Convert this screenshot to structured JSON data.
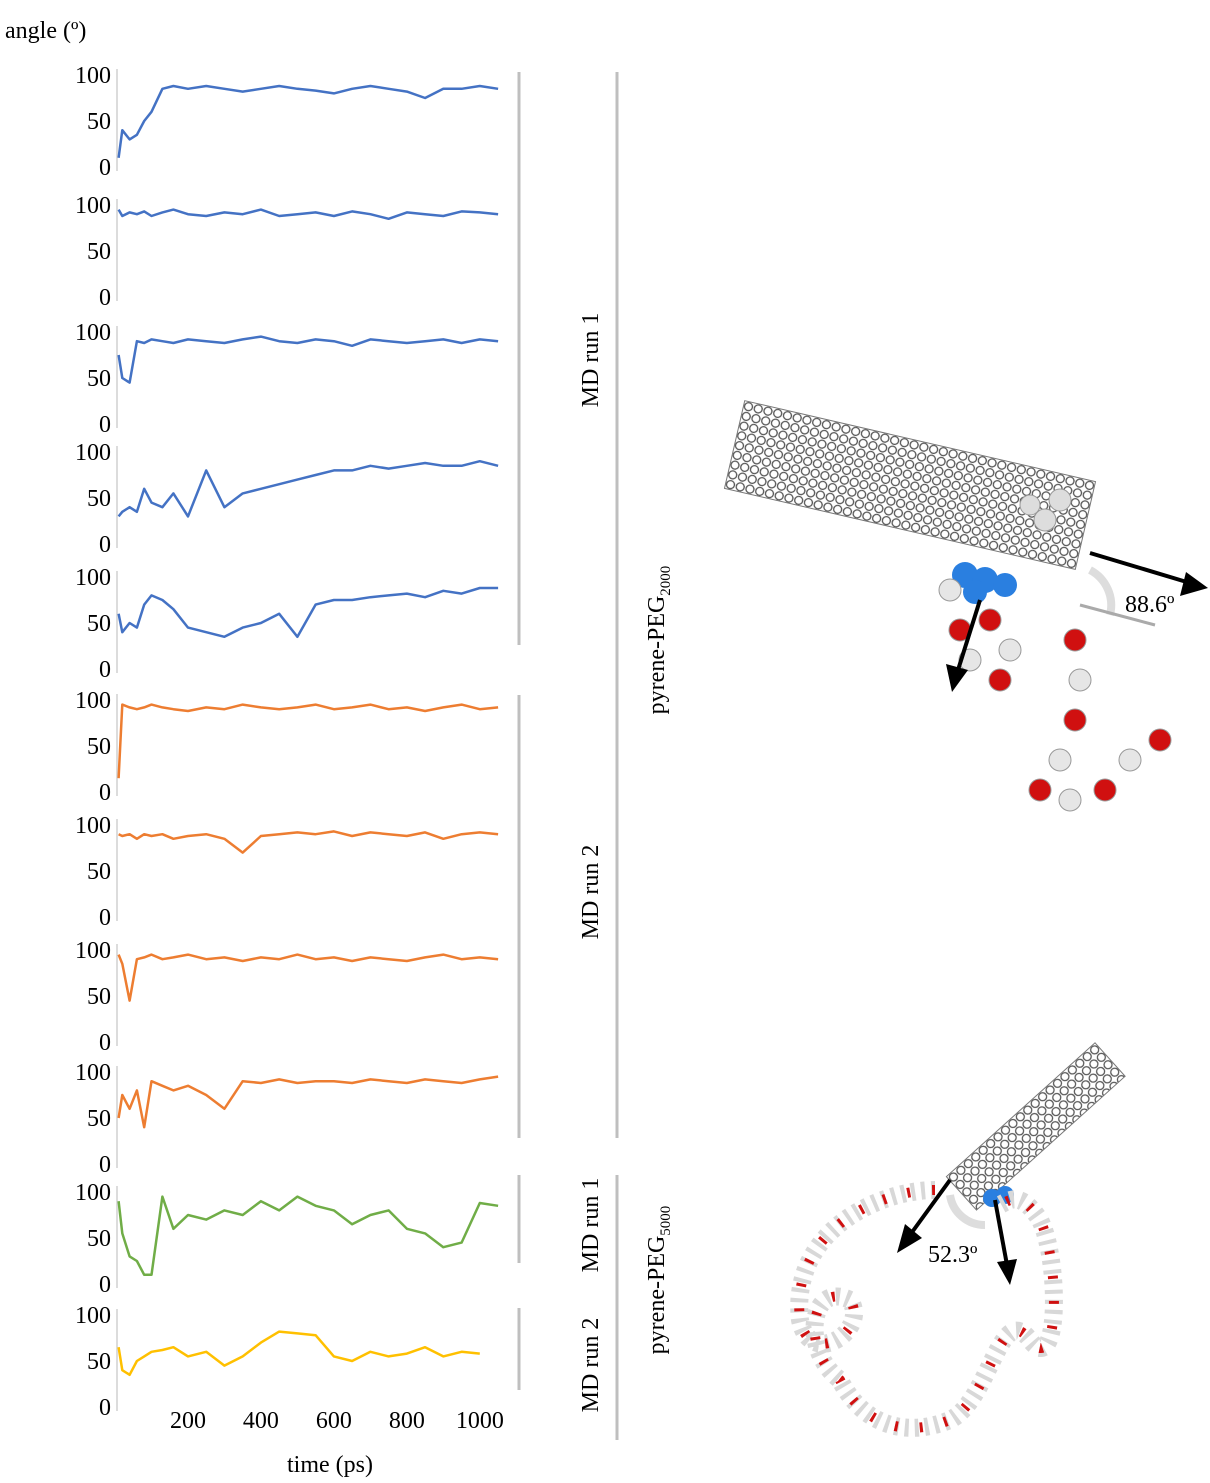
{
  "figure": {
    "groups": {
      "blue": "MD run 1",
      "orange": "MD run 2",
      "green": "MD run 1",
      "yellow": "MD run 2"
    },
    "systems": [
      {
        "name": "pyrene-PEG",
        "sub": "2000"
      },
      {
        "name": "pyrene-PEG",
        "sub": "5000"
      }
    ],
    "annotations": [
      "88.6º",
      "52.3º"
    ]
  },
  "chart_data": [
    {
      "type": "line",
      "y_label": "angle (º)",
      "xlim": [
        0,
        1080
      ],
      "ylim": [
        0,
        100
      ],
      "yticks": [
        0,
        50,
        100
      ],
      "x": [
        10,
        20,
        40,
        60,
        80,
        100,
        130,
        160,
        200,
        250,
        300,
        350,
        400,
        450,
        500,
        550,
        600,
        650,
        700,
        750,
        800,
        850,
        900,
        950,
        1000,
        1050
      ],
      "series": [
        {
          "color": "#4472c4",
          "values": [
            10,
            40,
            30,
            35,
            50,
            60,
            85,
            88,
            85,
            88,
            85,
            82,
            85,
            88,
            85,
            83,
            80,
            85,
            88,
            85,
            82,
            75,
            85,
            85,
            88,
            85
          ]
        }
      ]
    },
    {
      "type": "line",
      "xlim": [
        0,
        1080
      ],
      "ylim": [
        0,
        100
      ],
      "yticks": [
        0,
        50,
        100
      ],
      "x": [
        10,
        20,
        40,
        60,
        80,
        100,
        130,
        160,
        200,
        250,
        300,
        350,
        400,
        450,
        500,
        550,
        600,
        650,
        700,
        750,
        800,
        850,
        900,
        950,
        1000,
        1050
      ],
      "series": [
        {
          "color": "#4472c4",
          "values": [
            95,
            88,
            92,
            90,
            93,
            88,
            92,
            95,
            90,
            88,
            92,
            90,
            95,
            88,
            90,
            92,
            88,
            93,
            90,
            85,
            92,
            90,
            88,
            93,
            92,
            90
          ]
        }
      ]
    },
    {
      "type": "line",
      "xlim": [
        0,
        1080
      ],
      "ylim": [
        0,
        100
      ],
      "yticks": [
        0,
        50,
        100
      ],
      "x": [
        10,
        20,
        40,
        60,
        80,
        100,
        130,
        160,
        200,
        250,
        300,
        350,
        400,
        450,
        500,
        550,
        600,
        650,
        700,
        750,
        800,
        850,
        900,
        950,
        1000,
        1050
      ],
      "series": [
        {
          "color": "#4472c4",
          "values": [
            75,
            50,
            45,
            90,
            88,
            92,
            90,
            88,
            92,
            90,
            88,
            92,
            95,
            90,
            88,
            92,
            90,
            85,
            92,
            90,
            88,
            90,
            92,
            88,
            92,
            90
          ]
        }
      ]
    },
    {
      "type": "line",
      "xlim": [
        0,
        1080
      ],
      "ylim": [
        0,
        100
      ],
      "yticks": [
        0,
        50,
        100
      ],
      "x": [
        10,
        20,
        40,
        60,
        80,
        100,
        130,
        160,
        200,
        250,
        300,
        350,
        400,
        450,
        500,
        550,
        600,
        650,
        700,
        750,
        800,
        850,
        900,
        950,
        1000,
        1050
      ],
      "series": [
        {
          "color": "#4472c4",
          "values": [
            30,
            35,
            40,
            35,
            60,
            45,
            40,
            55,
            30,
            80,
            40,
            55,
            60,
            65,
            70,
            75,
            80,
            80,
            85,
            82,
            85,
            88,
            85,
            85,
            90,
            85
          ]
        }
      ]
    },
    {
      "type": "line",
      "xlim": [
        0,
        1080
      ],
      "ylim": [
        0,
        100
      ],
      "yticks": [
        0,
        50,
        100
      ],
      "x": [
        10,
        20,
        40,
        60,
        80,
        100,
        130,
        160,
        200,
        250,
        300,
        350,
        400,
        450,
        500,
        550,
        600,
        650,
        700,
        750,
        800,
        850,
        900,
        950,
        1000,
        1050
      ],
      "series": [
        {
          "color": "#4472c4",
          "values": [
            60,
            40,
            50,
            45,
            70,
            80,
            75,
            65,
            45,
            40,
            35,
            45,
            50,
            60,
            35,
            70,
            75,
            75,
            78,
            80,
            82,
            78,
            85,
            82,
            88,
            88
          ]
        }
      ]
    },
    {
      "type": "line",
      "xlim": [
        0,
        1080
      ],
      "ylim": [
        0,
        100
      ],
      "yticks": [
        0,
        50,
        100
      ],
      "x": [
        10,
        20,
        40,
        60,
        80,
        100,
        130,
        160,
        200,
        250,
        300,
        350,
        400,
        450,
        500,
        550,
        600,
        650,
        700,
        750,
        800,
        850,
        900,
        950,
        1000,
        1050
      ],
      "series": [
        {
          "color": "#ed7d31",
          "values": [
            15,
            95,
            92,
            90,
            92,
            95,
            92,
            90,
            88,
            92,
            90,
            95,
            92,
            90,
            92,
            95,
            90,
            92,
            95,
            90,
            92,
            88,
            92,
            95,
            90,
            92
          ]
        }
      ]
    },
    {
      "type": "line",
      "xlim": [
        0,
        1080
      ],
      "ylim": [
        0,
        100
      ],
      "yticks": [
        0,
        50,
        100
      ],
      "x": [
        10,
        20,
        40,
        60,
        80,
        100,
        130,
        160,
        200,
        250,
        300,
        350,
        400,
        450,
        500,
        550,
        600,
        650,
        700,
        750,
        800,
        850,
        900,
        950,
        1000,
        1050
      ],
      "series": [
        {
          "color": "#ed7d31",
          "values": [
            90,
            88,
            90,
            85,
            90,
            88,
            90,
            85,
            88,
            90,
            85,
            70,
            88,
            90,
            92,
            90,
            93,
            88,
            92,
            90,
            88,
            92,
            85,
            90,
            92,
            90
          ]
        }
      ]
    },
    {
      "type": "line",
      "xlim": [
        0,
        1080
      ],
      "ylim": [
        0,
        100
      ],
      "yticks": [
        0,
        50,
        100
      ],
      "x": [
        10,
        20,
        40,
        60,
        80,
        100,
        130,
        160,
        200,
        250,
        300,
        350,
        400,
        450,
        500,
        550,
        600,
        650,
        700,
        750,
        800,
        850,
        900,
        950,
        1000,
        1050
      ],
      "series": [
        {
          "color": "#ed7d31",
          "values": [
            95,
            85,
            45,
            90,
            92,
            95,
            90,
            92,
            95,
            90,
            92,
            88,
            92,
            90,
            95,
            90,
            92,
            88,
            92,
            90,
            88,
            92,
            95,
            90,
            92,
            90
          ]
        }
      ]
    },
    {
      "type": "line",
      "xlim": [
        0,
        1080
      ],
      "ylim": [
        0,
        100
      ],
      "yticks": [
        0,
        50,
        100
      ],
      "x": [
        10,
        20,
        40,
        60,
        80,
        100,
        130,
        160,
        200,
        250,
        300,
        350,
        400,
        450,
        500,
        550,
        600,
        650,
        700,
        750,
        800,
        850,
        900,
        950,
        1000,
        1050
      ],
      "series": [
        {
          "color": "#ed7d31",
          "values": [
            50,
            75,
            60,
            80,
            40,
            90,
            85,
            80,
            85,
            75,
            60,
            90,
            88,
            92,
            88,
            90,
            90,
            88,
            92,
            90,
            88,
            92,
            90,
            88,
            92,
            95
          ]
        }
      ]
    },
    {
      "type": "line",
      "xlim": [
        0,
        1080
      ],
      "ylim": [
        0,
        100
      ],
      "yticks": [
        0,
        50,
        100
      ],
      "x": [
        10,
        20,
        40,
        60,
        80,
        100,
        130,
        160,
        200,
        250,
        300,
        350,
        400,
        450,
        500,
        550,
        600,
        650,
        700,
        750,
        800,
        850,
        900,
        950,
        1000,
        1050
      ],
      "series": [
        {
          "color": "#70ad47",
          "values": [
            90,
            55,
            30,
            25,
            10,
            10,
            95,
            60,
            75,
            70,
            80,
            75,
            90,
            80,
            95,
            85,
            80,
            65,
            75,
            80,
            60,
            55,
            40,
            45,
            88,
            85
          ]
        }
      ]
    },
    {
      "type": "line",
      "x_label": "time (ps)",
      "xlim": [
        0,
        1080
      ],
      "ylim": [
        0,
        100
      ],
      "yticks": [
        0,
        50,
        100
      ],
      "xticks": [
        200,
        400,
        600,
        800,
        1000
      ],
      "x": [
        10,
        20,
        40,
        60,
        80,
        100,
        130,
        160,
        200,
        250,
        300,
        350,
        400,
        450,
        500,
        550,
        600,
        650,
        700,
        750,
        800,
        850,
        900,
        950,
        1000,
        1050
      ],
      "series": [
        {
          "color": "#ffc000",
          "values": [
            65,
            40,
            35,
            50,
            55,
            60,
            62,
            65,
            55,
            60,
            45,
            55,
            70,
            82,
            80,
            78,
            55,
            50,
            60,
            55,
            58,
            65,
            55,
            60,
            58,
            null
          ]
        }
      ]
    }
  ]
}
